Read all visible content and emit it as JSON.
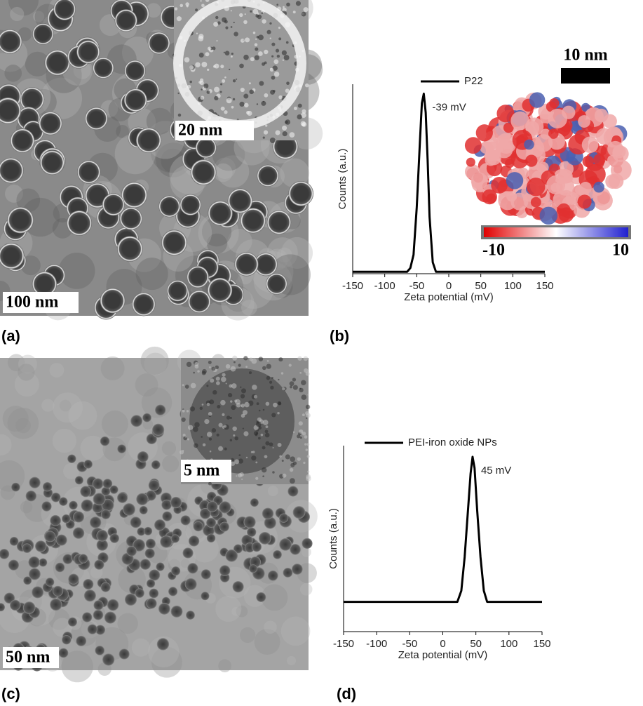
{
  "panels": {
    "a": {
      "label": "(a)",
      "scale": "100 nm",
      "inset_scale": "20 nm"
    },
    "b": {
      "label": "(b)",
      "structure_scale": "10 nm",
      "colorbar_min": "-10",
      "colorbar_max": "10"
    },
    "c": {
      "label": "(c)",
      "scale": "50 nm",
      "inset_scale": "5 nm"
    },
    "d": {
      "label": "(d)"
    }
  },
  "chart_data": [
    {
      "type": "line",
      "xlabel": "Zeta potential (mV)",
      "ylabel": "Counts (a.u.)",
      "annotation": "-39 mV",
      "legend": "upper center",
      "x": [
        -150,
        -65,
        -60,
        -55,
        -50,
        -45,
        -42,
        -39,
        -36,
        -33,
        -30,
        -25,
        -20,
        150
      ],
      "series": [
        {
          "name": "P22",
          "color": "#000000",
          "values": [
            0.01,
            0.01,
            0.03,
            0.1,
            0.35,
            0.7,
            0.9,
            0.95,
            0.85,
            0.6,
            0.3,
            0.06,
            0.01,
            0.01
          ]
        }
      ],
      "xlim": [
        -150,
        150
      ],
      "xticks": [
        -150,
        -100,
        -50,
        0,
        50,
        100,
        150
      ],
      "ylim": [
        0,
        1
      ]
    },
    {
      "type": "line",
      "xlabel": "Zeta potential (mV)",
      "ylabel": "Counts (a.u.)",
      "annotation": "45 mV",
      "legend": "upper left",
      "x": [
        -150,
        22,
        28,
        33,
        38,
        42,
        45,
        48,
        52,
        57,
        62,
        67,
        150
      ],
      "series": [
        {
          "name": "PEI-iron oxide NPs",
          "color": "#000000",
          "values": [
            0.16,
            0.16,
            0.22,
            0.4,
            0.65,
            0.85,
            0.94,
            0.88,
            0.65,
            0.4,
            0.22,
            0.16,
            0.16
          ]
        }
      ],
      "xlim": [
        -150,
        150
      ],
      "xticks": [
        -150,
        -100,
        -50,
        0,
        50,
        100,
        150
      ],
      "ylim": [
        0,
        1
      ]
    }
  ]
}
